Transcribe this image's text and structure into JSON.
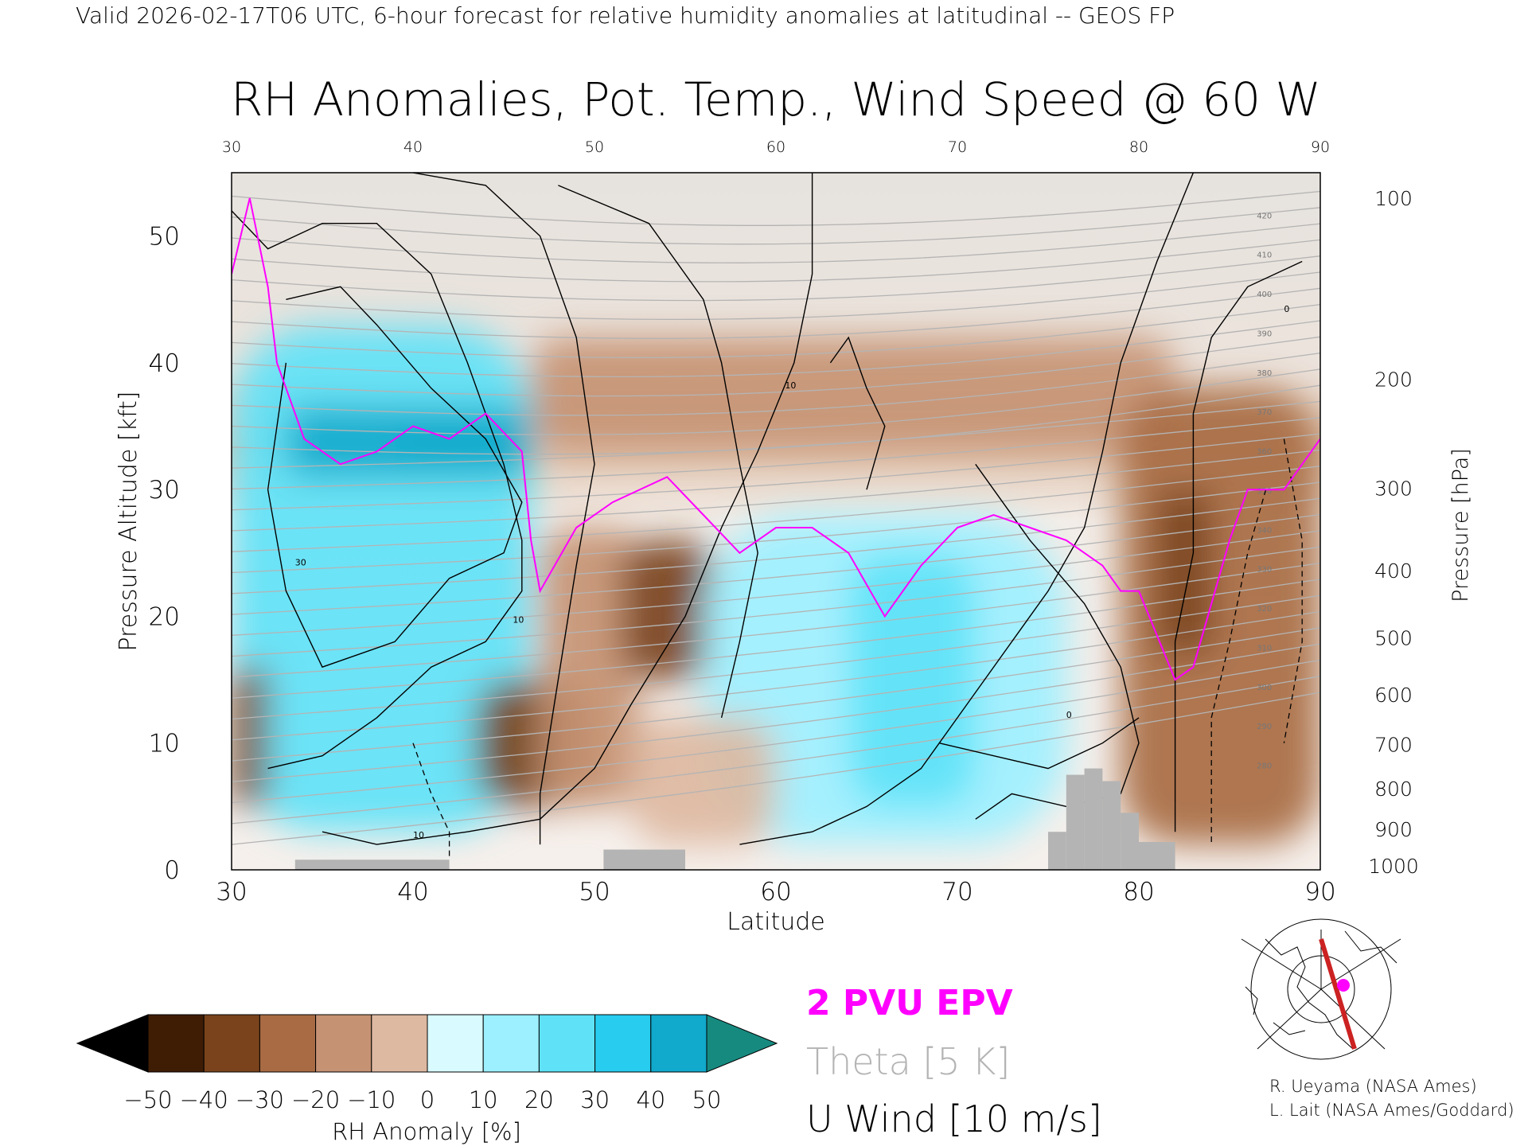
{
  "header": {
    "valid_line": "Valid 2026-02-17T06 UTC, 6-hour forecast for relative humidity anomalies at latitudinal -- GEOS FP"
  },
  "chart_data": {
    "type": "heatmap",
    "title": "RH Anomalies, Pot. Temp., Wind Speed @ 60 W",
    "xlabel": "Latitude",
    "ylabel_left": "Pressure Altitude [kft]",
    "ylabel_right": "Pressure [hPa]",
    "xlim": [
      30,
      90
    ],
    "ylim_kft": [
      0,
      55
    ],
    "x_ticks": [
      "30",
      "40",
      "50",
      "60",
      "70",
      "80",
      "90"
    ],
    "y_ticks_left": [
      "0",
      "10",
      "20",
      "30",
      "40",
      "50"
    ],
    "y_ticks_left_values": [
      0,
      10,
      20,
      30,
      40,
      50
    ],
    "y_ticks_right": [
      {
        "label": "100",
        "kft": 53.0
      },
      {
        "label": "200",
        "kft": 38.7
      },
      {
        "label": "300",
        "kft": 30.1
      },
      {
        "label": "400",
        "kft": 23.6
      },
      {
        "label": "500",
        "kft": 18.3
      },
      {
        "label": "600",
        "kft": 13.8
      },
      {
        "label": "700",
        "kft": 9.9
      },
      {
        "label": "800",
        "kft": 6.4
      },
      {
        "label": "900",
        "kft": 3.2
      },
      {
        "label": "1000",
        "kft": 0.3
      }
    ],
    "rh_anomaly_regions": [
      {
        "lat": [
          30,
          46.5
        ],
        "kft": [
          3,
          43
        ],
        "value": 25
      },
      {
        "lat": [
          33,
          46.5
        ],
        "kft": [
          31,
          36.5
        ],
        "value": 45
      },
      {
        "lat": [
          39,
          45
        ],
        "kft": [
          32,
          35
        ],
        "value": 50
      },
      {
        "lat": [
          30,
          32
        ],
        "kft": [
          5,
          16
        ],
        "value": -40
      },
      {
        "lat": [
          43.5,
          50
        ],
        "kft": [
          5,
          15
        ],
        "value": -45
      },
      {
        "lat": [
          47,
          52.5
        ],
        "kft": [
          5,
          27
        ],
        "value": -25
      },
      {
        "lat": [
          51.5,
          56.5
        ],
        "kft": [
          15,
          26
        ],
        "value": -40
      },
      {
        "lat": [
          46.5,
          82
        ],
        "kft": [
          33,
          42
        ],
        "value": -20
      },
      {
        "lat": [
          56,
          76
        ],
        "kft": [
          2,
          28
        ],
        "value": 20
      },
      {
        "lat": [
          64,
          71
        ],
        "kft": [
          5,
          25
        ],
        "value": 25
      },
      {
        "lat": [
          52,
          60
        ],
        "kft": [
          2,
          12
        ],
        "value": -15
      },
      {
        "lat": [
          79,
          90
        ],
        "kft": [
          2,
          38
        ],
        "value": -30
      },
      {
        "lat": [
          81,
          84
        ],
        "kft": [
          17,
          30
        ],
        "value": -45
      }
    ],
    "pv_2pvu_contour": [
      [
        30,
        47
      ],
      [
        31,
        53
      ],
      [
        32,
        46
      ],
      [
        32.5,
        40
      ],
      [
        34,
        34
      ],
      [
        36,
        32
      ],
      [
        38,
        33
      ],
      [
        40,
        35
      ],
      [
        42,
        34
      ],
      [
        44,
        36
      ],
      [
        46,
        33
      ],
      [
        46.5,
        26
      ],
      [
        47,
        22
      ],
      [
        49,
        27
      ],
      [
        51,
        29
      ],
      [
        54,
        31
      ],
      [
        56,
        28
      ],
      [
        58,
        25
      ],
      [
        60,
        27
      ],
      [
        62,
        27
      ],
      [
        64,
        25
      ],
      [
        66,
        20
      ],
      [
        68,
        24
      ],
      [
        70,
        27
      ],
      [
        72,
        28
      ],
      [
        74,
        27
      ],
      [
        76,
        26
      ],
      [
        78,
        24
      ],
      [
        79,
        22
      ],
      [
        80,
        22
      ],
      [
        82,
        15
      ],
      [
        83,
        16
      ],
      [
        85,
        26
      ],
      [
        86,
        30
      ],
      [
        88,
        30
      ],
      [
        90,
        34
      ]
    ],
    "theta_levels_labeled": [
      "280",
      "290",
      "300",
      "310",
      "320",
      "330",
      "340",
      "350",
      "360",
      "370",
      "380",
      "390",
      "400",
      "410",
      "420"
    ],
    "u_wind_labels": [
      "10",
      "30",
      "0"
    ],
    "topography": [
      {
        "lat": [
          33.5,
          42
        ],
        "kft": 0.8
      },
      {
        "lat": [
          50.5,
          55
        ],
        "kft": 1.6
      },
      {
        "lat": [
          75,
          76
        ],
        "kft": 3.0
      },
      {
        "lat": [
          76,
          77
        ],
        "kft": 7.5
      },
      {
        "lat": [
          77,
          78
        ],
        "kft": 8.0
      },
      {
        "lat": [
          78,
          79
        ],
        "kft": 7.0
      },
      {
        "lat": [
          79,
          80
        ],
        "kft": 4.5
      },
      {
        "lat": [
          80,
          82
        ],
        "kft": 2.2
      }
    ]
  },
  "colorbar": {
    "label": "RH Anomaly [%]",
    "tick_labels": [
      "-50",
      "-40",
      "-30",
      "-20",
      "-10",
      "0",
      "10",
      "20",
      "30",
      "40",
      "50"
    ],
    "colors": [
      "#3f1d05",
      "#7a431c",
      "#a86b43",
      "#c59273",
      "#ddb9a1",
      "#efe3da",
      "#d9fbff",
      "#9df0ff",
      "#5fe2f7",
      "#27ccee",
      "#11a9cc"
    ],
    "under_color": "#000000",
    "over_color": "#178a80"
  },
  "legend": {
    "pv_label": "2 PVU EPV",
    "theta_label": "Theta [5 K]",
    "wind_label": "U Wind [10 m/s]",
    "pv_color": "#ff00ff",
    "theta_color": "#b4b4b4",
    "wind_color": "#000000"
  },
  "credits": {
    "line1": "R. Ueyama (NASA Ames)",
    "line2": "L. Lait (NASA Ames/Goddard)"
  }
}
